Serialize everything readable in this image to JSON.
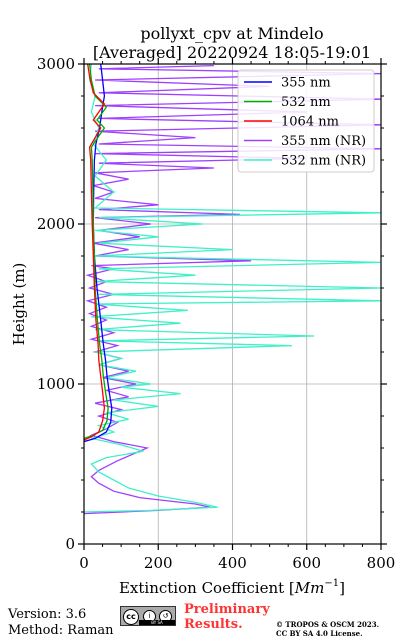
{
  "chart_data": {
    "type": "line",
    "title_line1": "pollyxt_cpv at Mindelo",
    "title_line2": "[Averaged] 20220924 18:05-19:01",
    "xlabel": "Extinction Coefficient [$Mm^{-1}$]",
    "xlabel_text": "Extinction Coefficient [",
    "xlabel_unit": "Mm",
    "xlabel_exp": "−1",
    "xlabel_end": "]",
    "ylabel": "Height (m)",
    "xlim": [
      0,
      800
    ],
    "ylim": [
      0,
      3000
    ],
    "xticks": [
      "0",
      "200",
      "400",
      "600",
      "800"
    ],
    "yticks": [
      "0",
      "1000",
      "2000",
      "3000"
    ],
    "grid": true,
    "legend_position": "top-right",
    "series": [
      {
        "name": "355 nm",
        "color": "#0000ff",
        "points": [
          [
            0,
            640
          ],
          [
            30,
            660
          ],
          [
            60,
            700
          ],
          [
            72,
            760
          ],
          [
            75,
            850
          ],
          [
            68,
            950
          ],
          [
            62,
            1050
          ],
          [
            58,
            1150
          ],
          [
            52,
            1250
          ],
          [
            45,
            1400
          ],
          [
            35,
            1600
          ],
          [
            28,
            1800
          ],
          [
            25,
            2000
          ],
          [
            26,
            2200
          ],
          [
            28,
            2400
          ],
          [
            32,
            2500
          ],
          [
            42,
            2600
          ],
          [
            48,
            2700
          ],
          [
            55,
            2800
          ],
          [
            50,
            2900
          ],
          [
            45,
            3000
          ]
        ]
      },
      {
        "name": "532 nm",
        "color": "#00aa00",
        "points": [
          [
            0,
            660
          ],
          [
            25,
            680
          ],
          [
            50,
            710
          ],
          [
            62,
            770
          ],
          [
            65,
            850
          ],
          [
            58,
            950
          ],
          [
            52,
            1050
          ],
          [
            48,
            1150
          ],
          [
            42,
            1250
          ],
          [
            36,
            1400
          ],
          [
            30,
            1600
          ],
          [
            28,
            1800
          ],
          [
            25,
            2000
          ],
          [
            24,
            2200
          ],
          [
            22,
            2400
          ],
          [
            20,
            2480
          ],
          [
            40,
            2550
          ],
          [
            55,
            2600
          ],
          [
            35,
            2650
          ],
          [
            60,
            2730
          ],
          [
            30,
            2800
          ],
          [
            20,
            2900
          ],
          [
            15,
            3000
          ]
        ]
      },
      {
        "name": "1064 nm",
        "color": "#ff0000",
        "points": [
          [
            0,
            650
          ],
          [
            20,
            670
          ],
          [
            40,
            700
          ],
          [
            50,
            770
          ],
          [
            55,
            850
          ],
          [
            50,
            950
          ],
          [
            45,
            1050
          ],
          [
            40,
            1150
          ],
          [
            38,
            1250
          ],
          [
            32,
            1400
          ],
          [
            28,
            1600
          ],
          [
            25,
            1800
          ],
          [
            22,
            2000
          ],
          [
            20,
            2200
          ],
          [
            18,
            2400
          ],
          [
            15,
            2480
          ],
          [
            35,
            2560
          ],
          [
            45,
            2600
          ],
          [
            25,
            2650
          ],
          [
            55,
            2750
          ],
          [
            25,
            2820
          ],
          [
            15,
            2920
          ],
          [
            10,
            3000
          ]
        ]
      },
      {
        "name": "355 nm (NR)",
        "color": "#a040ff",
        "points": [
          [
            0,
            190
          ],
          [
            200,
            210
          ],
          [
            340,
            230
          ],
          [
            300,
            250
          ],
          [
            150,
            290
          ],
          [
            80,
            330
          ],
          [
            40,
            380
          ],
          [
            20,
            420
          ],
          [
            40,
            460
          ],
          [
            90,
            520
          ],
          [
            130,
            560
          ],
          [
            170,
            600
          ],
          [
            80,
            640
          ],
          [
            20,
            680
          ],
          [
            60,
            720
          ],
          [
            90,
            760
          ],
          [
            40,
            800
          ],
          [
            100,
            840
          ],
          [
            30,
            880
          ],
          [
            120,
            920
          ],
          [
            60,
            960
          ],
          [
            140,
            1000
          ],
          [
            50,
            1040
          ],
          [
            120,
            1080
          ],
          [
            40,
            1120
          ],
          [
            100,
            1160
          ],
          [
            30,
            1200
          ],
          [
            90,
            1240
          ],
          [
            20,
            1280
          ],
          [
            80,
            1320
          ],
          [
            20,
            1360
          ],
          [
            60,
            1400
          ],
          [
            15,
            1440
          ],
          [
            60,
            1480
          ],
          [
            10,
            1520
          ],
          [
            80,
            1560
          ],
          [
            15,
            1600
          ],
          [
            60,
            1640
          ],
          [
            10,
            1680
          ],
          [
            80,
            1720
          ],
          [
            20,
            1740
          ],
          [
            450,
            1770
          ],
          [
            30,
            1800
          ],
          [
            120,
            1840
          ],
          [
            25,
            1880
          ],
          [
            150,
            1920
          ],
          [
            40,
            1960
          ],
          [
            180,
            2000
          ],
          [
            30,
            2040
          ],
          [
            420,
            2060
          ],
          [
            40,
            2090
          ],
          [
            200,
            2120
          ],
          [
            30,
            2160
          ],
          [
            80,
            2200
          ],
          [
            25,
            2240
          ],
          [
            120,
            2280
          ],
          [
            30,
            2320
          ],
          [
            350,
            2350
          ],
          [
            40,
            2380
          ],
          [
            600,
            2410
          ],
          [
            30,
            2440
          ],
          [
            800,
            2470
          ],
          [
            40,
            2500
          ],
          [
            300,
            2540
          ],
          [
            30,
            2580
          ],
          [
            800,
            2620
          ],
          [
            40,
            2660
          ],
          [
            600,
            2700
          ],
          [
            30,
            2740
          ],
          [
            800,
            2780
          ],
          [
            40,
            2820
          ],
          [
            500,
            2860
          ],
          [
            30,
            2900
          ],
          [
            800,
            2940
          ],
          [
            40,
            2970
          ],
          [
            350,
            2990
          ]
        ]
      },
      {
        "name": "532 nm (NR)",
        "color": "#40f0c8",
        "points": [
          [
            0,
            200
          ],
          [
            180,
            210
          ],
          [
            360,
            230
          ],
          [
            300,
            260
          ],
          [
            200,
            300
          ],
          [
            120,
            350
          ],
          [
            80,
            400
          ],
          [
            40,
            450
          ],
          [
            20,
            500
          ],
          [
            60,
            540
          ],
          [
            160,
            580
          ],
          [
            100,
            620
          ],
          [
            20,
            660
          ],
          [
            80,
            700
          ],
          [
            40,
            740
          ],
          [
            120,
            780
          ],
          [
            60,
            820
          ],
          [
            200,
            860
          ],
          [
            80,
            900
          ],
          [
            260,
            940
          ],
          [
            100,
            980
          ],
          [
            180,
            1000
          ],
          [
            60,
            1040
          ],
          [
            140,
            1080
          ],
          [
            40,
            1120
          ],
          [
            100,
            1160
          ],
          [
            30,
            1200
          ],
          [
            560,
            1240
          ],
          [
            40,
            1270
          ],
          [
            620,
            1300
          ],
          [
            30,
            1340
          ],
          [
            260,
            1380
          ],
          [
            20,
            1420
          ],
          [
            280,
            1460
          ],
          [
            30,
            1500
          ],
          [
            800,
            1520
          ],
          [
            40,
            1560
          ],
          [
            800,
            1600
          ],
          [
            30,
            1640
          ],
          [
            300,
            1680
          ],
          [
            40,
            1720
          ],
          [
            800,
            1760
          ],
          [
            30,
            1800
          ],
          [
            400,
            1840
          ],
          [
            40,
            1880
          ],
          [
            200,
            1920
          ],
          [
            30,
            1960
          ],
          [
            320,
            2000
          ],
          [
            40,
            2040
          ],
          [
            800,
            2070
          ],
          [
            30,
            2100
          ],
          [
            80,
            2200
          ],
          [
            30,
            2300
          ],
          [
            60,
            2400
          ],
          [
            25,
            2500
          ],
          [
            40,
            2600
          ],
          [
            20,
            2700
          ],
          [
            30,
            2800
          ],
          [
            15,
            2900
          ],
          [
            20,
            3000
          ]
        ]
      }
    ]
  },
  "footer": {
    "version": "Version: 3.6",
    "method": "Method: Raman",
    "cc_label": "cc",
    "cc_by": "BY",
    "cc_sa": "SA",
    "prelim_line1": "Preliminary",
    "prelim_line2": "Results.",
    "copyright_line1": "© TROPOS & OSCM 2023.",
    "copyright_line2": "CC BY SA 4.0 License."
  }
}
